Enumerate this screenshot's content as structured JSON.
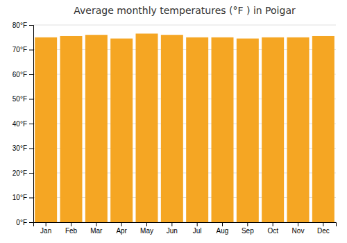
{
  "chart_data": {
    "type": "bar",
    "title": "Average monthly temperatures (°F ) in Poigar",
    "categories": [
      "Jan",
      "Feb",
      "Mar",
      "Apr",
      "May",
      "Jun",
      "Jul",
      "Aug",
      "Sep",
      "Oct",
      "Nov",
      "Dec"
    ],
    "values": [
      75.0,
      75.5,
      76.0,
      74.5,
      76.5,
      76.0,
      75.0,
      75.0,
      74.5,
      75.0,
      75.0,
      75.5
    ],
    "color": "#F5A623",
    "ylim": [
      0,
      80
    ],
    "yticks": [
      {
        "value": 0,
        "label": "0°F"
      },
      {
        "value": 10,
        "label": "10°F"
      },
      {
        "value": 20,
        "label": "20°F"
      },
      {
        "value": 30,
        "label": "30°F"
      },
      {
        "value": 40,
        "label": "40°F"
      },
      {
        "value": 50,
        "label": "50°F"
      },
      {
        "value": 60,
        "label": "60°F"
      },
      {
        "value": 70,
        "label": "70°F"
      },
      {
        "value": 80,
        "label": "80°F"
      }
    ],
    "grid": true
  }
}
